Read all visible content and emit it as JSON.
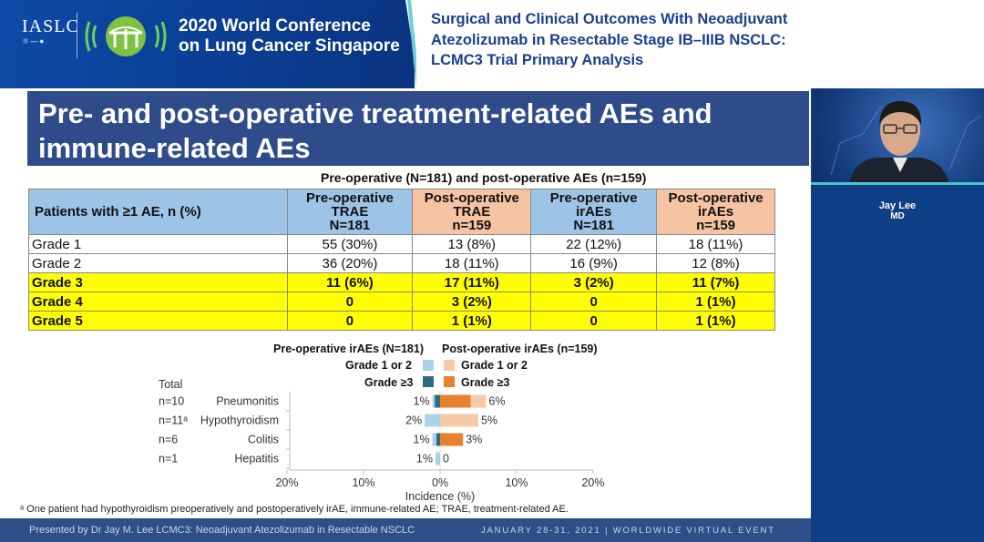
{
  "banner": {
    "org": "IASLC",
    "conference_line1": "2020 World Conference",
    "conference_line2": "on Lung Cancer Singapore",
    "title_line1": "Surgical and Clinical Outcomes With Neoadjuvant",
    "title_line2": "Atezolizumab in Resectable Stage IB–IIIB NSCLC:",
    "title_line3": "LCMC3 Trial Primary Analysis",
    "brand_color": "#0b3d91"
  },
  "slide": {
    "heading_line1": "Pre- and post-operative treatment-related AEs and",
    "heading_line2": "immune-related AEs",
    "table": {
      "caption": "Pre-operative (N=181) and post-operative AEs (n=159)",
      "headers": [
        {
          "line1": "Patients with ≥1 AE, n (%)",
          "line2": "",
          "line3": ""
        },
        {
          "line1": "Pre-operative",
          "line2": "TRAE",
          "line3": "N=181"
        },
        {
          "line1": "Post-operative",
          "line2": "TRAE",
          "line3": "n=159"
        },
        {
          "line1": "Pre-operative",
          "line2": "irAEs",
          "line3": "N=181"
        },
        {
          "line1": "Post-operative",
          "line2": "irAEs",
          "line3": "n=159"
        }
      ],
      "rows": [
        [
          "Grade 1",
          "55 (30%)",
          "13 (8%)",
          "22 (12%)",
          "18 (11%)"
        ],
        [
          "Grade 2",
          "36 (20%)",
          "18 (11%)",
          "16 (9%)",
          "12 (8%)"
        ],
        [
          "Grade 3",
          "11 (6%)",
          "17 (11%)",
          "3 (2%)",
          "11 (7%)"
        ],
        [
          "Grade 4",
          "0",
          "3 (2%)",
          "0",
          "1 (1%)"
        ],
        [
          "Grade 5",
          "0",
          "1 (1%)",
          "0",
          "1 (1%)"
        ]
      ]
    },
    "legend": {
      "pre_title": "Pre-operative irAEs (N=181)",
      "post_title": "Post-operative irAEs (n=159)",
      "pre_g12": "Grade 1 or 2",
      "pre_g3": "Grade ≥3",
      "post_g12": "Grade 1 or 2",
      "post_g3": "Grade ≥3"
    },
    "footnote": "ᵃ One patient had hypothyroidism preoperatively and postoperatively irAE, immune-related AE; TRAE, treatment-related AE."
  },
  "chart_data": {
    "type": "bar",
    "orientation": "horizontal-diverging",
    "title": "",
    "xlabel": "Incidence (%)",
    "ylabel": "",
    "xlim": [
      -20,
      20
    ],
    "ticks": [
      -20,
      -10,
      0,
      10,
      20
    ],
    "tick_labels": [
      "20%",
      "10%",
      "0%",
      "10%",
      "20%"
    ],
    "total_header": "Total",
    "categories": [
      "Pneumonitis",
      "Hypothyroidism",
      "Colitis",
      "Hepatitis"
    ],
    "totals": [
      "n=10",
      "n=11ᵃ",
      "n=6",
      "n=1"
    ],
    "series": [
      {
        "name": "Pre-operative Grade 1 or 2",
        "side": "left",
        "values": [
          0.3,
          2,
          0.5,
          0.6
        ],
        "color": "#a9d3e3"
      },
      {
        "name": "Pre-operative Grade ≥3",
        "side": "left",
        "values": [
          0.7,
          0,
          0.5,
          0
        ],
        "color": "#2b6c7f"
      },
      {
        "name": "Post-operative Grade 1 or 2",
        "side": "right",
        "values": [
          2,
          5,
          0,
          0
        ],
        "color": "#f8c9a6"
      },
      {
        "name": "Post-operative Grade ≥3",
        "side": "right",
        "values": [
          4,
          0,
          3,
          0
        ],
        "color": "#e6822f"
      }
    ],
    "pre_labels": [
      "1%",
      "2%",
      "1%",
      "1%"
    ],
    "post_labels": [
      "6%",
      "5%",
      "3%",
      "0"
    ]
  },
  "footer": {
    "presented_by": "Presented by Dr Jay M. Lee    LCMC3: Neoadjuvant Atezolizumab in Resectable NSCLC",
    "event": "JANUARY 28-31, 2021 | WORLDWIDE VIRTUAL EVENT"
  },
  "speaker": {
    "name": "Jay Lee",
    "title": "MD"
  }
}
